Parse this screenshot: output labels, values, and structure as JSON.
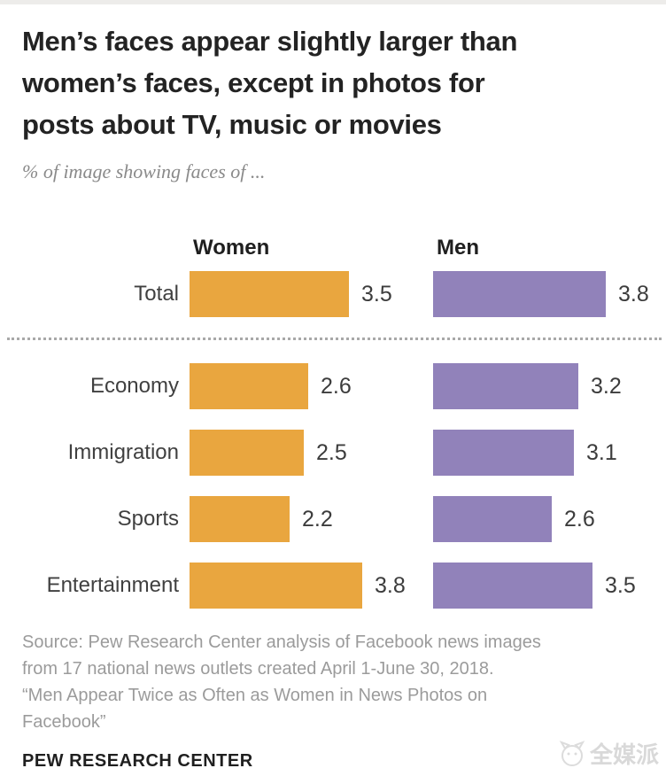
{
  "header": {
    "title_lines": [
      "Men’s faces appear slightly larger than",
      "women’s faces, except in photos for",
      "posts about TV, music or movies"
    ],
    "subtitle": "% of image showing faces of ..."
  },
  "chart_data": {
    "type": "bar",
    "orientation": "horizontal",
    "categories": [
      "Total",
      "Economy",
      "Immigration",
      "Sports",
      "Entertainment"
    ],
    "series": [
      {
        "name": "Women",
        "color": "#E9A63F",
        "values": [
          3.5,
          2.6,
          2.5,
          2.2,
          3.8
        ]
      },
      {
        "name": "Men",
        "color": "#9182BA",
        "values": [
          3.8,
          3.2,
          3.1,
          2.6,
          3.5
        ]
      }
    ],
    "xlim": [
      0,
      3.8
    ],
    "value_labels": [
      "3.5",
      "2.6",
      "2.5",
      "2.2",
      "3.8",
      "3.8",
      "3.2",
      "3.1",
      "2.6",
      "3.5"
    ],
    "divider_after_category": "Total",
    "grid": false,
    "legend_position": "column-headers"
  },
  "footer": {
    "source_lines": [
      "Source: Pew Research Center analysis of Facebook news images",
      "from 17 national news outlets created April 1-June 30, 2018.",
      "“Men Appear Twice as Often as Women in News Photos on",
      "Facebook”"
    ],
    "brand": "PEW RESEARCH CENTER"
  },
  "watermark": {
    "text": "全媒派"
  }
}
